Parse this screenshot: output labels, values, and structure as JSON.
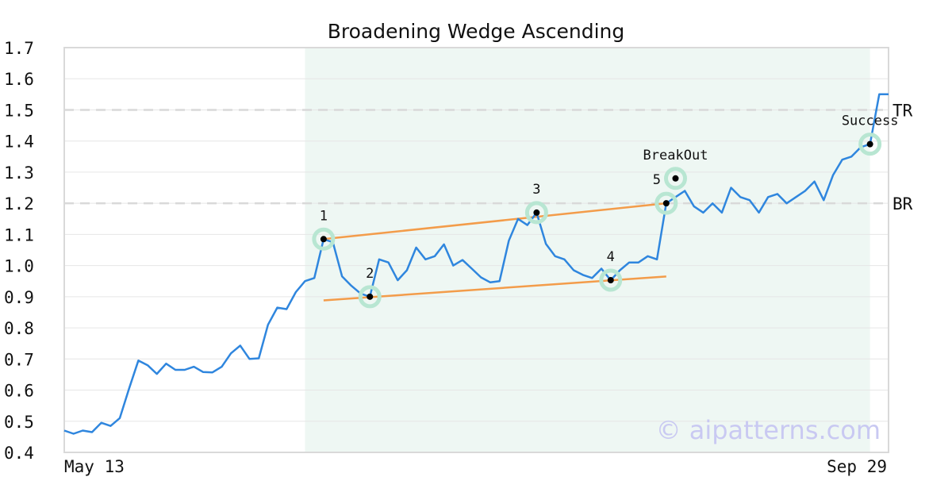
{
  "chart_data": {
    "type": "line",
    "title": "Broadening Wedge Ascending",
    "xlabel": "",
    "ylabel": "",
    "ylim": [
      0.4,
      1.7
    ],
    "y_ticks": [
      "0.4",
      "0.5",
      "0.6",
      "0.7",
      "0.8",
      "0.9",
      "1.0",
      "1.1",
      "1.2",
      "1.3",
      "1.4",
      "1.5",
      "1.6",
      "1.7"
    ],
    "x_tick_labels": [
      "May 13",
      "Sep 29"
    ],
    "grid": true,
    "colors": {
      "line": "#2f86de",
      "trend": "#f39c4a",
      "shade": "#eef7f3",
      "marker_halo": "#b8e6d2",
      "ref_line": "#d9d9d9",
      "frame": "#d9d9d9"
    },
    "series": [
      {
        "values": [
          0.47,
          0.46,
          0.47,
          0.465,
          0.495,
          0.485,
          0.51,
          0.605,
          0.695,
          0.68,
          0.652,
          0.685,
          0.665,
          0.665,
          0.675,
          0.658,
          0.657,
          0.675,
          0.718,
          0.743,
          0.7,
          0.702,
          0.81,
          0.865,
          0.86,
          0.915,
          0.95,
          0.96,
          1.085,
          1.075,
          0.965,
          0.935,
          0.91,
          0.9,
          1.02,
          1.01,
          0.953,
          0.985,
          1.058,
          1.02,
          1.03,
          1.068,
          1.0,
          1.018,
          0.99,
          0.962,
          0.946,
          0.95,
          1.08,
          1.15,
          1.13,
          1.17,
          1.07,
          1.03,
          1.02,
          0.985,
          0.97,
          0.96,
          0.99,
          0.953,
          0.985,
          1.01,
          1.01,
          1.03,
          1.02,
          1.2,
          1.22,
          1.24,
          1.19,
          1.17,
          1.2,
          1.17,
          1.25,
          1.22,
          1.21,
          1.17,
          1.22,
          1.23,
          1.2,
          1.22,
          1.24,
          1.27,
          1.21,
          1.29,
          1.34,
          1.35,
          1.38,
          1.39,
          1.55,
          1.55
        ]
      }
    ],
    "shaded_range": {
      "start_index": 26,
      "end_index": 87
    },
    "reference_lines": [
      {
        "label": "TR",
        "y": 1.5
      },
      {
        "label": "BR",
        "y": 1.2
      }
    ],
    "trendlines": [
      {
        "from": {
          "index": 28,
          "y": 1.085
        },
        "to": {
          "index": 65,
          "y": 1.2
        }
      },
      {
        "from": {
          "index": 28,
          "y": 0.888
        },
        "to": {
          "index": 65,
          "y": 0.965
        }
      }
    ],
    "annotations": [
      {
        "label": "1",
        "index": 28,
        "y": 1.085
      },
      {
        "label": "2",
        "index": 33,
        "y": 0.9
      },
      {
        "label": "3",
        "index": 51,
        "y": 1.17
      },
      {
        "label": "4",
        "index": 59,
        "y": 0.953
      },
      {
        "label": "5",
        "index": 65,
        "y": 1.2
      },
      {
        "label": "BreakOut",
        "index": 66,
        "y": 1.28
      },
      {
        "label": "Success",
        "index": 87,
        "y": 1.39
      }
    ],
    "watermark": "© aipatterns.com"
  }
}
